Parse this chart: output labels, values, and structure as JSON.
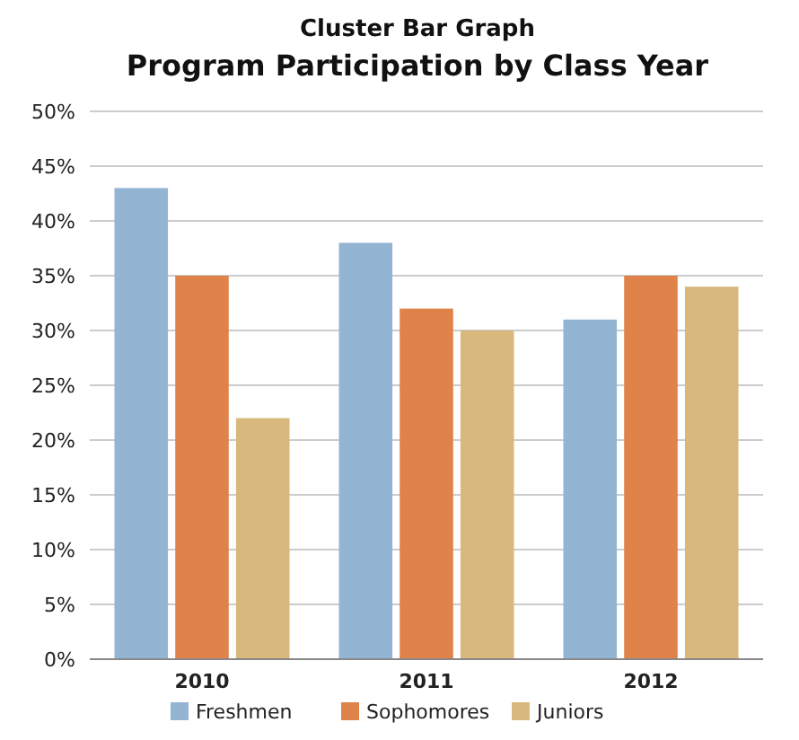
{
  "chart_data": {
    "type": "bar",
    "title": "Cluster Bar Graph",
    "subtitle": "Program Participation by Class Year",
    "categories": [
      "2010",
      "2011",
      "2012"
    ],
    "series": [
      {
        "name": "Freshmen",
        "color": "#94b4d4",
        "values": [
          43,
          38,
          31
        ]
      },
      {
        "name": "Sophomores",
        "color": "#e0834a",
        "values": [
          35,
          32,
          35
        ]
      },
      {
        "name": "Juniors",
        "color": "#d8b87c",
        "values": [
          22,
          30,
          34
        ]
      }
    ],
    "ylim": [
      0,
      50
    ],
    "yticks": [
      {
        "value": 0,
        "label": "0%"
      },
      {
        "value": 5,
        "label": "5%"
      },
      {
        "value": 10,
        "label": "10%"
      },
      {
        "value": 15,
        "label": "15%"
      },
      {
        "value": 20,
        "label": "20%"
      },
      {
        "value": 25,
        "label": "25%"
      },
      {
        "value": 30,
        "label": "30%"
      },
      {
        "value": 35,
        "label": "35%"
      },
      {
        "value": 40,
        "label": "40%"
      },
      {
        "value": 45,
        "label": "45%"
      },
      {
        "value": 50,
        "label": "50%"
      }
    ],
    "grid": "y",
    "legend": "bottom"
  }
}
